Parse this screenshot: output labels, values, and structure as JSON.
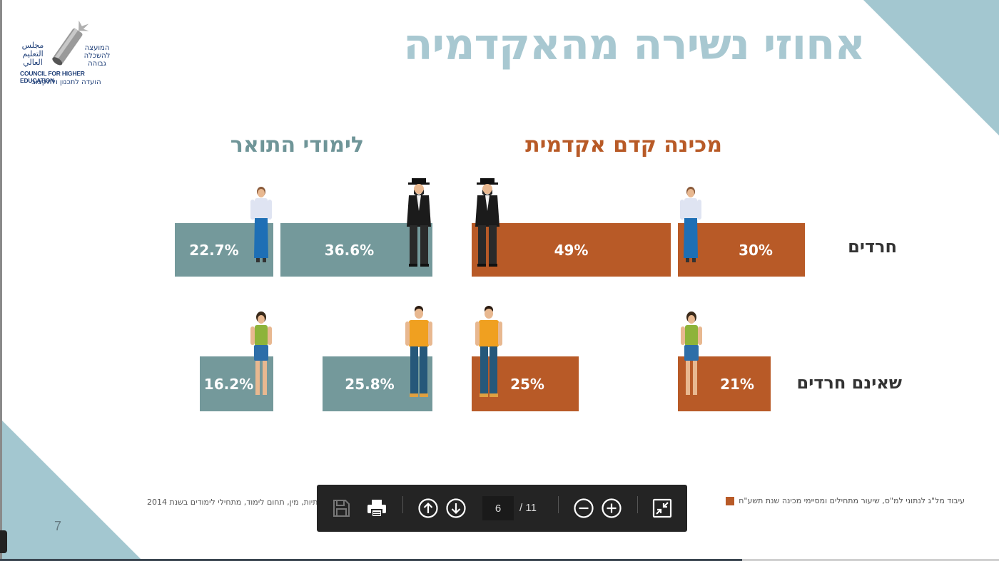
{
  "slide": {
    "title": "אחוזי נשירה מהאקדמיה",
    "page_number": "7",
    "logo": {
      "arabic": "مجلس التعليم العالي",
      "hebrew_top": "המועצה להשכלה גבוהה",
      "english": "COUNCIL FOR HIGHER EDUCATION",
      "hebrew_bottom": "הועדה לתכנון ולתקצוב"
    },
    "headers": {
      "mechina": "מכינה קדם אקדמית",
      "toar": "לימודי התואר"
    },
    "rows": {
      "haredim": "חרדים",
      "non_haredim": "שאינם חרדים"
    },
    "bars": {
      "mechina_haredi_women": "30%",
      "mechina_haredi_men": "49%",
      "toar_haredi_men": "36.6%",
      "toar_haredi_women": "22.7%",
      "mechina_non_women": "21%",
      "mechina_non_men": "25%",
      "toar_non_men": "25.8%",
      "toar_non_women": "16.2%"
    },
    "footnote_right": "עיבוד מל\"ג לנתוני למ\"ס, שיעור מתחילים ומסיימי מכינה שנת תשע\"ח",
    "footnote_left": "תיות, מין, תחום לימוד, מתחילי לימודים בשנת 2014"
  },
  "toolbar": {
    "current_page": "6",
    "total_pages": "/ 11"
  },
  "colors": {
    "orange": "#b85a27",
    "teal": "#74999b",
    "title": "#a8c8d1",
    "triangle": "#a3c7d0"
  }
}
